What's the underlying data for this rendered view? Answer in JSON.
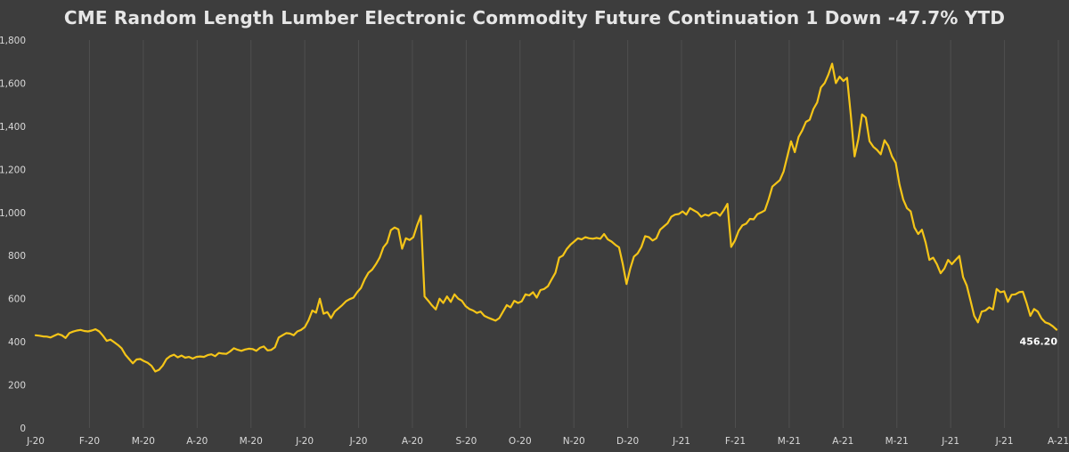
{
  "chart_data": {
    "type": "line",
    "title": "CME Random Length Lumber Electronic Commodity Future Continuation 1 Down -47.7% YTD",
    "xlabel": "",
    "ylabel": "",
    "ylim": [
      0,
      1800
    ],
    "yticks": [
      0,
      200,
      400,
      600,
      800,
      1000,
      1200,
      1400,
      1600,
      1800
    ],
    "ytick_labels": [
      "0",
      "200",
      "400",
      "600",
      "800",
      "1,000",
      "1,200",
      "1,400",
      "1,600",
      "1,800"
    ],
    "xtick_labels": [
      "J-20",
      "F-20",
      "M-20",
      "A-20",
      "M-20",
      "J-20",
      "J-20",
      "A-20",
      "S-20",
      "O-20",
      "N-20",
      "D-20",
      "J-21",
      "F-21",
      "M-21",
      "A-21",
      "M-21",
      "J-21",
      "J-21",
      "A-21"
    ],
    "grid": "vertical",
    "line_color": "#f5c518",
    "end_label": "456.20",
    "series": [
      {
        "values": [
          430,
          428,
          425,
          424,
          420,
          428,
          436,
          430,
          418,
          440,
          447,
          452,
          455,
          450,
          448,
          452,
          458,
          448,
          428,
          404,
          410,
          398,
          385,
          370,
          340,
          320,
          300,
          318,
          320,
          310,
          302,
          288,
          262,
          270,
          290,
          320,
          333,
          340,
          328,
          336,
          326,
          330,
          322,
          330,
          332,
          330,
          338,
          342,
          333,
          348,
          345,
          344,
          355,
          370,
          363,
          358,
          364,
          368,
          366,
          358,
          372,
          378,
          360,
          362,
          375,
          420,
          430,
          440,
          438,
          430,
          448,
          455,
          468,
          500,
          545,
          535,
          600,
          530,
          538,
          510,
          540,
          555,
          570,
          588,
          598,
          605,
          630,
          650,
          690,
          720,
          735,
          760,
          790,
          838,
          860,
          918,
          930,
          922,
          832,
          880,
          872,
          885,
          940,
          985,
          610,
          590,
          568,
          550,
          600,
          580,
          610,
          585,
          620,
          600,
          590,
          565,
          552,
          545,
          534,
          540,
          520,
          512,
          505,
          498,
          510,
          540,
          570,
          560,
          590,
          580,
          588,
          620,
          615,
          630,
          605,
          640,
          645,
          658,
          690,
          720,
          790,
          800,
          830,
          850,
          865,
          880,
          875,
          885,
          880,
          878,
          882,
          878,
          900,
          875,
          865,
          850,
          838,
          760,
          668,
          740,
          795,
          810,
          840,
          890,
          885,
          870,
          880,
          920,
          935,
          950,
          980,
          990,
          993,
          1005,
          990,
          1020,
          1010,
          1000,
          980,
          990,
          985,
          998,
          1000,
          985,
          1010,
          1040,
          840,
          870,
          915,
          940,
          948,
          970,
          968,
          992,
          1000,
          1010,
          1060,
          1120,
          1135,
          1150,
          1190,
          1260,
          1330,
          1280,
          1350,
          1380,
          1420,
          1430,
          1480,
          1510,
          1580,
          1600,
          1640,
          1690,
          1600,
          1630,
          1610,
          1625,
          1450,
          1260,
          1340,
          1455,
          1440,
          1330,
          1305,
          1290,
          1270,
          1335,
          1310,
          1260,
          1230,
          1130,
          1060,
          1020,
          1005,
          930,
          900,
          920,
          860,
          780,
          790,
          760,
          718,
          740,
          780,
          760,
          780,
          798,
          700,
          660,
          590,
          520,
          490,
          540,
          545,
          560,
          550,
          645,
          630,
          634,
          585,
          618,
          620,
          630,
          632,
          580,
          520,
          552,
          540,
          508,
          490,
          484,
          472,
          456.2
        ]
      }
    ]
  }
}
